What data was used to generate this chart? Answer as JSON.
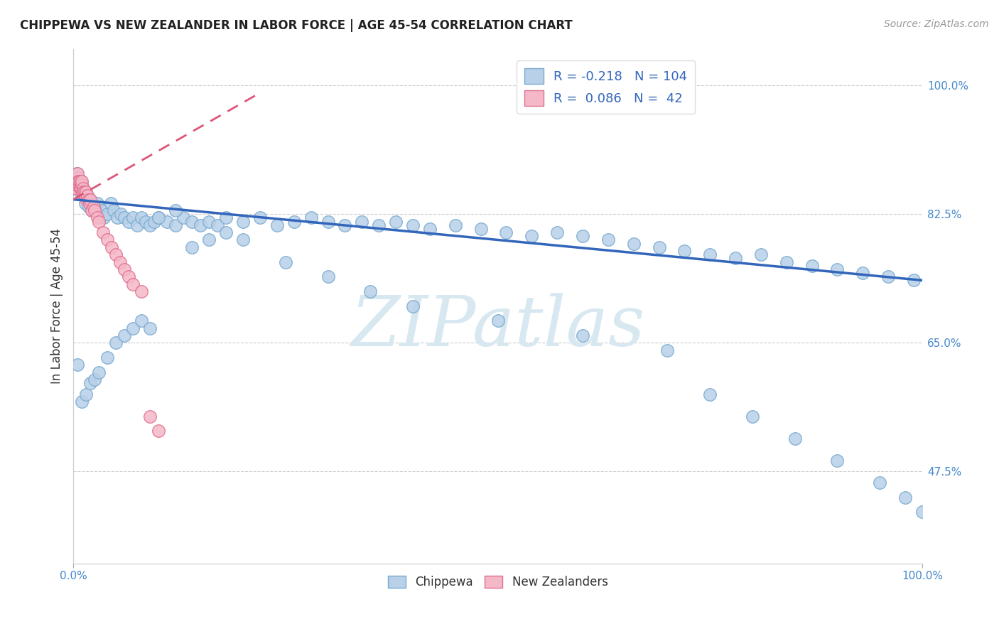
{
  "title": "CHIPPEWA VS NEW ZEALANDER IN LABOR FORCE | AGE 45-54 CORRELATION CHART",
  "source_text": "Source: ZipAtlas.com",
  "ylabel": "In Labor Force | Age 45-54",
  "xlim": [
    0.0,
    1.0
  ],
  "ylim": [
    0.35,
    1.05
  ],
  "ytick_vals": [
    0.475,
    0.65,
    0.825,
    1.0
  ],
  "ytick_labels": [
    "47.5%",
    "65.0%",
    "82.5%",
    "100.0%"
  ],
  "xtick_vals": [
    0.0,
    1.0
  ],
  "xtick_labels": [
    "0.0%",
    "100.0%"
  ],
  "r_chippewa": -0.218,
  "n_chippewa": 104,
  "r_nz": 0.086,
  "n_nz": 42,
  "chippewa_color": "#b8d0e8",
  "chippewa_edge": "#7aaad0",
  "nz_color": "#f5b8c8",
  "nz_edge": "#e07090",
  "trend_chippewa_color": "#3366bb",
  "trend_nz_color": "#dd5577",
  "background_color": "#ffffff",
  "watermark_text": "ZIPatlas",
  "watermark_color": "#d8e8f0",
  "legend_label_chippewa": "R = -0.218   N = 104",
  "legend_label_nz": "R =  0.086   N =  42",
  "bottom_legend_chippewa": "Chippewa",
  "bottom_legend_nz": "New Zealanders",
  "chip_x": [
    0.003,
    0.004,
    0.005,
    0.006,
    0.007,
    0.008,
    0.009,
    0.01,
    0.012,
    0.014,
    0.016,
    0.018,
    0.02,
    0.022,
    0.025,
    0.028,
    0.03,
    0.033,
    0.036,
    0.04,
    0.044,
    0.048,
    0.052,
    0.056,
    0.06,
    0.065,
    0.07,
    0.075,
    0.08,
    0.085,
    0.09,
    0.095,
    0.1,
    0.11,
    0.12,
    0.13,
    0.14,
    0.15,
    0.16,
    0.17,
    0.18,
    0.2,
    0.22,
    0.24,
    0.26,
    0.28,
    0.3,
    0.32,
    0.34,
    0.36,
    0.38,
    0.4,
    0.42,
    0.45,
    0.48,
    0.51,
    0.54,
    0.57,
    0.6,
    0.63,
    0.66,
    0.69,
    0.72,
    0.75,
    0.78,
    0.81,
    0.84,
    0.87,
    0.9,
    0.93,
    0.96,
    0.99,
    0.005,
    0.01,
    0.015,
    0.02,
    0.025,
    0.03,
    0.04,
    0.05,
    0.06,
    0.07,
    0.08,
    0.09,
    0.1,
    0.12,
    0.14,
    0.16,
    0.18,
    0.2,
    0.25,
    0.3,
    0.35,
    0.4,
    0.5,
    0.6,
    0.7,
    0.75,
    0.8,
    0.85,
    0.9,
    0.95,
    0.98,
    1.0
  ],
  "chip_y": [
    0.865,
    0.88,
    0.87,
    0.875,
    0.86,
    0.855,
    0.87,
    0.86,
    0.855,
    0.84,
    0.85,
    0.835,
    0.845,
    0.83,
    0.83,
    0.84,
    0.825,
    0.83,
    0.82,
    0.825,
    0.84,
    0.83,
    0.82,
    0.825,
    0.82,
    0.815,
    0.82,
    0.81,
    0.82,
    0.815,
    0.81,
    0.815,
    0.82,
    0.815,
    0.81,
    0.82,
    0.815,
    0.81,
    0.815,
    0.81,
    0.82,
    0.815,
    0.82,
    0.81,
    0.815,
    0.82,
    0.815,
    0.81,
    0.815,
    0.81,
    0.815,
    0.81,
    0.805,
    0.81,
    0.805,
    0.8,
    0.795,
    0.8,
    0.795,
    0.79,
    0.785,
    0.78,
    0.775,
    0.77,
    0.765,
    0.77,
    0.76,
    0.755,
    0.75,
    0.745,
    0.74,
    0.735,
    0.62,
    0.57,
    0.58,
    0.595,
    0.6,
    0.61,
    0.63,
    0.65,
    0.66,
    0.67,
    0.68,
    0.67,
    0.82,
    0.83,
    0.78,
    0.79,
    0.8,
    0.79,
    0.76,
    0.74,
    0.72,
    0.7,
    0.68,
    0.66,
    0.64,
    0.58,
    0.55,
    0.52,
    0.49,
    0.46,
    0.44,
    0.42
  ],
  "nz_x": [
    0.001,
    0.002,
    0.003,
    0.004,
    0.005,
    0.005,
    0.006,
    0.007,
    0.007,
    0.008,
    0.008,
    0.009,
    0.01,
    0.01,
    0.011,
    0.012,
    0.012,
    0.013,
    0.013,
    0.014,
    0.015,
    0.016,
    0.017,
    0.018,
    0.019,
    0.02,
    0.022,
    0.024,
    0.025,
    0.028,
    0.03,
    0.035,
    0.04,
    0.045,
    0.05,
    0.055,
    0.06,
    0.065,
    0.07,
    0.08,
    0.09,
    0.1
  ],
  "nz_y": [
    0.86,
    0.87,
    0.86,
    0.865,
    0.875,
    0.88,
    0.87,
    0.865,
    0.87,
    0.86,
    0.87,
    0.86,
    0.865,
    0.87,
    0.855,
    0.86,
    0.855,
    0.85,
    0.855,
    0.85,
    0.855,
    0.845,
    0.85,
    0.845,
    0.84,
    0.845,
    0.83,
    0.835,
    0.83,
    0.82,
    0.815,
    0.8,
    0.79,
    0.78,
    0.77,
    0.76,
    0.75,
    0.74,
    0.73,
    0.72,
    0.55,
    0.53
  ],
  "chip_trend_x": [
    0.0,
    1.0
  ],
  "chip_trend_y": [
    0.845,
    0.735
  ],
  "nz_trend_x": [
    0.0,
    0.22
  ],
  "nz_trend_y": [
    0.845,
    0.99
  ]
}
